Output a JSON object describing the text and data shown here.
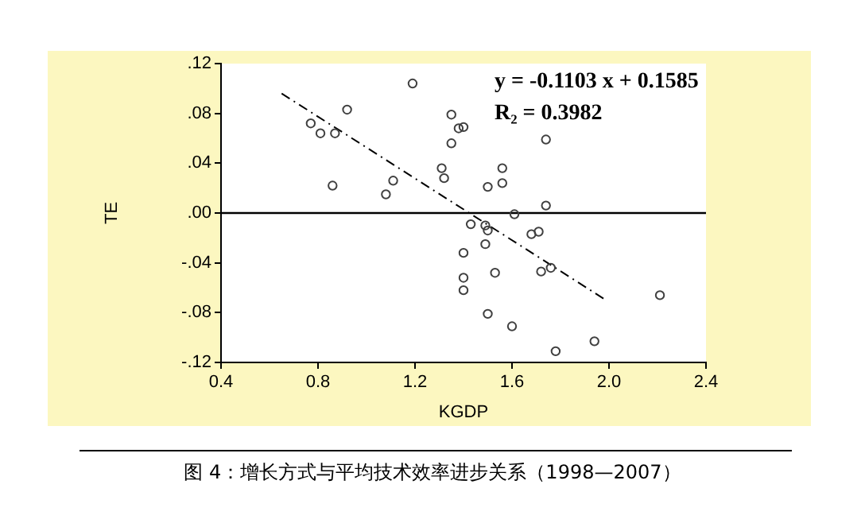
{
  "chart_data": {
    "type": "scatter",
    "xlabel": "KGDP",
    "ylabel": "TE",
    "xlim": [
      0.4,
      2.4
    ],
    "xticks": [
      0.4,
      0.8,
      1.2,
      1.6,
      {
        "value": 2.0,
        "label": "2.0"
      },
      2.4
    ],
    "ylim": [
      -0.12,
      0.12
    ],
    "yticks": [
      {
        "value": -0.12,
        "label": "-.12"
      },
      {
        "value": -0.08,
        "label": "-.08"
      },
      {
        "value": -0.04,
        "label": "-.04"
      },
      {
        "value": 0,
        "label": ".00"
      },
      {
        "value": 0.04,
        "label": ".04"
      },
      {
        "value": 0.08,
        "label": ".08"
      },
      {
        "value": 0.12,
        "label": ".12"
      }
    ],
    "grid": false,
    "marker": "circle",
    "series": [
      {
        "type": "scatter",
        "color": "#404040",
        "x": [
          0.77,
          0.81,
          0.87,
          0.92,
          0.86,
          1.19,
          1.08,
          1.11,
          1.31,
          1.32,
          1.35,
          1.38,
          1.4,
          1.35,
          1.74,
          1.56,
          1.5,
          1.56,
          1.74,
          1.61,
          1.43,
          1.49,
          1.5,
          1.68,
          1.71,
          1.49,
          1.4,
          1.53,
          1.72,
          1.76,
          1.4,
          1.4,
          1.5,
          1.6,
          1.78,
          1.94,
          2.21
        ],
        "values": [
          0.072,
          0.064,
          0.064,
          0.083,
          0.022,
          0.104,
          0.015,
          0.026,
          0.036,
          0.028,
          0.079,
          0.068,
          0.069,
          0.056,
          0.059,
          0.036,
          0.021,
          0.024,
          0.006,
          -0.001,
          -0.009,
          -0.01,
          -0.014,
          -0.017,
          -0.015,
          -0.025,
          -0.032,
          -0.048,
          -0.047,
          -0.044,
          -0.052,
          -0.062,
          -0.081,
          -0.091,
          -0.111,
          -0.103,
          -0.066
        ]
      },
      {
        "type": "line",
        "color": "#000000",
        "line_style": "dashed",
        "marker": "none",
        "x": [
          0.65,
          1.98
        ],
        "values": [
          0.096,
          -0.069
        ]
      }
    ],
    "ref_lines": [
      {
        "axis": "y",
        "value": 0,
        "color": "#000000"
      }
    ],
    "annotations": [
      "y = -0.1103 x + 0.1585",
      "R₂ = 0.3982",
      "图 4：增长方式与平均技术效率进步关系（1998—2007）"
    ]
  }
}
